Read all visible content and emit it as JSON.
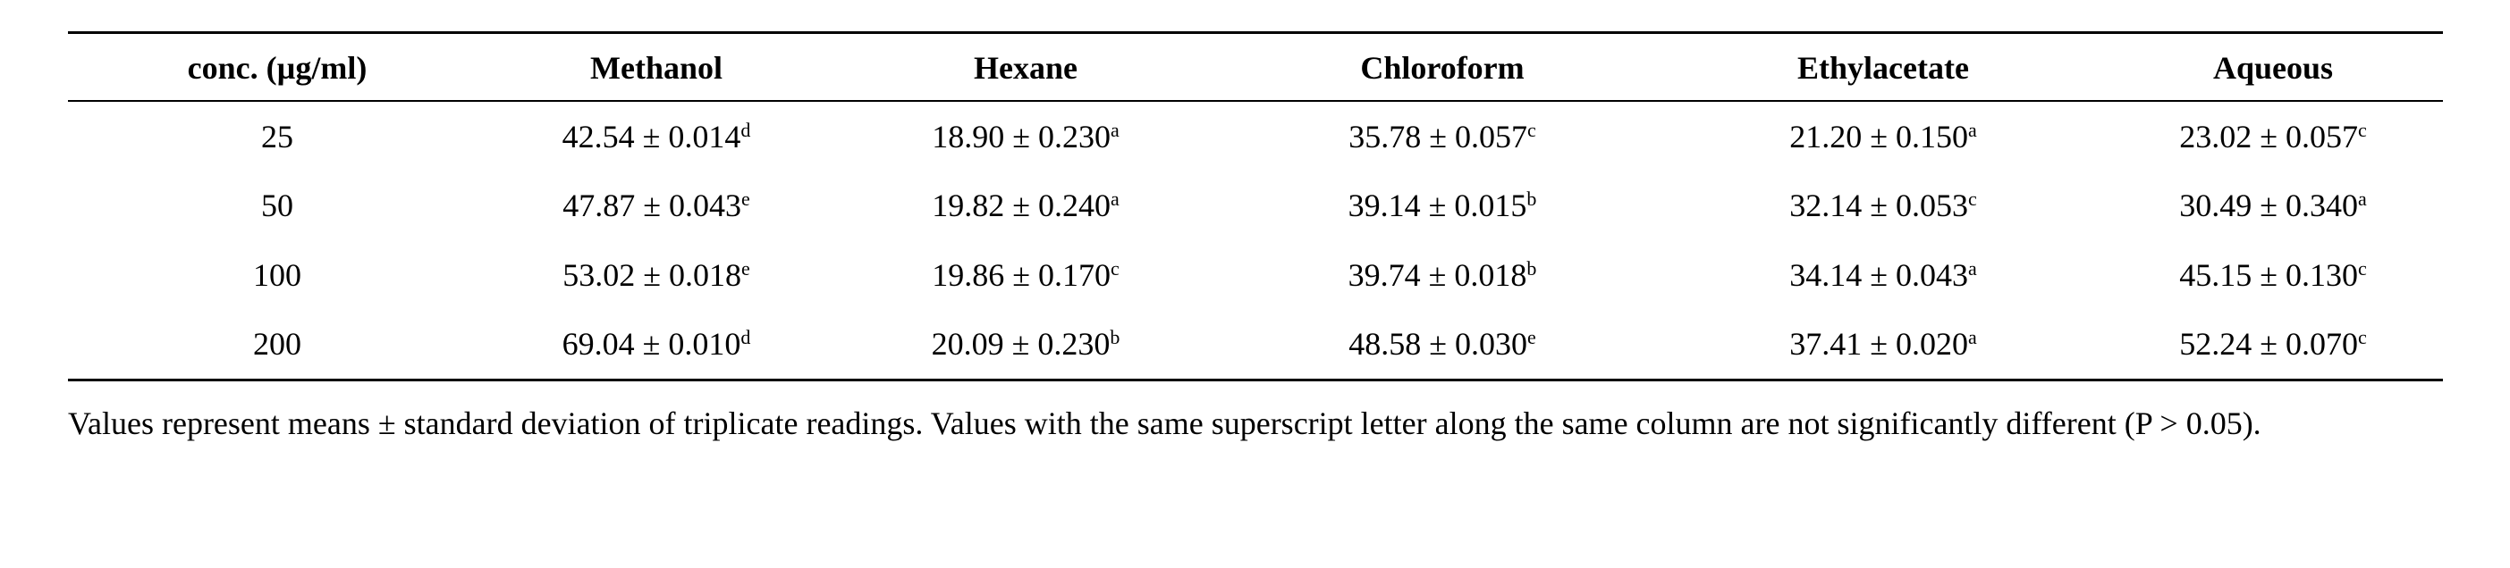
{
  "table": {
    "header": [
      "conc. (µg/ml)",
      "Methanol",
      "Hexane",
      "Chloroform",
      "Ethylacetate",
      "Aqueous"
    ],
    "rows": [
      [
        "25",
        {
          "text": "42.54 ± 0.014",
          "sup": "d"
        },
        {
          "text": "18.90 ± 0.230",
          "sup": "a"
        },
        {
          "text": "35.78 ± 0.057",
          "sup": "c"
        },
        {
          "text": "21.20 ± 0.150",
          "sup": "a"
        },
        {
          "text": "23.02 ± 0.057",
          "sup": "c"
        }
      ],
      [
        "50",
        {
          "text": "47.87 ± 0.043",
          "sup": "e"
        },
        {
          "text": "19.82 ± 0.240",
          "sup": "a"
        },
        {
          "text": "39.14 ± 0.015",
          "sup": "b"
        },
        {
          "text": "32.14 ± 0.053",
          "sup": "c"
        },
        {
          "text": "30.49 ± 0.340",
          "sup": "a"
        }
      ],
      [
        "100",
        {
          "text": "53.02 ± 0.018",
          "sup": "e"
        },
        {
          "text": "19.86 ± 0.170",
          "sup": "c"
        },
        {
          "text": "39.74 ± 0.018",
          "sup": "b"
        },
        {
          "text": "34.14 ± 0.043",
          "sup": "a"
        },
        {
          "text": "45.15 ± 0.130",
          "sup": "c"
        }
      ],
      [
        "200",
        {
          "text": "69.04 ± 0.010",
          "sup": "d"
        },
        {
          "text": "20.09 ± 0.230",
          "sup": "b"
        },
        {
          "text": "48.58 ± 0.030",
          "sup": "e"
        },
        {
          "text": "37.41 ± 0.020",
          "sup": "a"
        },
        {
          "text": "52.24 ± 0.070",
          "sup": "c"
        }
      ]
    ],
    "note": "Values represent means ± standard deviation of triplicate readings. Values with the same superscript letter along the same column are not significantly different (P > 0.05)."
  }
}
